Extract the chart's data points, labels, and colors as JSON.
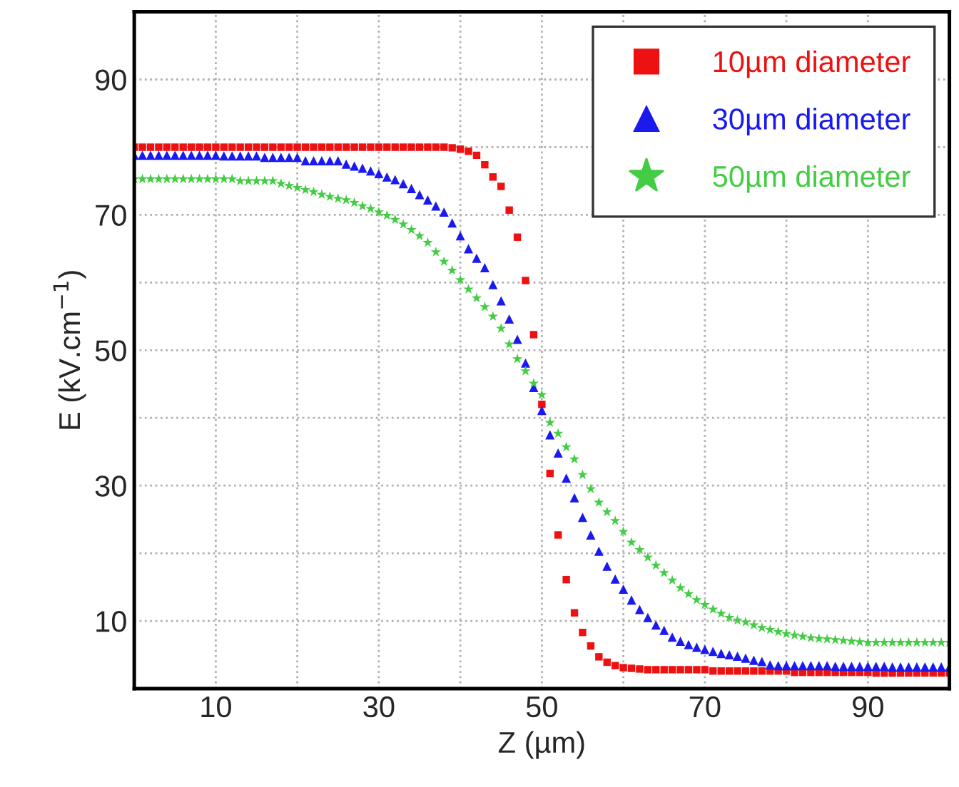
{
  "chart_data": {
    "type": "scatter",
    "xlabel": "Z (µm)",
    "ylabel": "E (kV.cm$^{−1}$)",
    "x": [
      0,
      1,
      2,
      3,
      4,
      5,
      6,
      7,
      8,
      9,
      10,
      11,
      12,
      13,
      14,
      15,
      16,
      17,
      18,
      19,
      20,
      21,
      22,
      23,
      24,
      25,
      26,
      27,
      28,
      29,
      30,
      31,
      32,
      33,
      34,
      35,
      36,
      37,
      38,
      39,
      40,
      41,
      42,
      43,
      44,
      45,
      46,
      47,
      48,
      49,
      50,
      51,
      52,
      53,
      54,
      55,
      56,
      57,
      58,
      59,
      60,
      61,
      62,
      63,
      64,
      65,
      66,
      67,
      68,
      69,
      70,
      71,
      72,
      73,
      74,
      75,
      76,
      77,
      78,
      79,
      80,
      81,
      82,
      83,
      84,
      85,
      86,
      87,
      88,
      89,
      90,
      91,
      92,
      93,
      94,
      95,
      96,
      97,
      98,
      99,
      100
    ],
    "series": [
      {
        "name": "10µm diameter",
        "color": "#ee1111",
        "marker": "square",
        "values": [
          80.0,
          80.0,
          80.0,
          80.0,
          80.0,
          80.0,
          80.0,
          80.0,
          80.0,
          80.0,
          80.0,
          80.0,
          80.0,
          80.0,
          80.0,
          80.0,
          80.0,
          80.0,
          80.0,
          80.0,
          80.0,
          80.0,
          80.0,
          80.0,
          80.0,
          80.0,
          80.0,
          80.0,
          80.0,
          80.0,
          80.0,
          80.0,
          80.0,
          80.0,
          80.0,
          80.0,
          80.0,
          80.0,
          80.0,
          79.9,
          79.7,
          79.4,
          78.8,
          77.4,
          75.6,
          74.2,
          70.7,
          66.7,
          60.3,
          52.3,
          42.0,
          31.8,
          22.7,
          16.1,
          11.2,
          8.3,
          6.3,
          4.7,
          3.9,
          3.4,
          3.1,
          3.0,
          2.9,
          2.8,
          2.8,
          2.8,
          2.8,
          2.8,
          2.8,
          2.8,
          2.8,
          2.6,
          2.6,
          2.6,
          2.6,
          2.6,
          2.6,
          2.6,
          2.6,
          2.6,
          2.6,
          2.4,
          2.4,
          2.4,
          2.4,
          2.4,
          2.4,
          2.4,
          2.4,
          2.4,
          2.4,
          2.3,
          2.3,
          2.3,
          2.3,
          2.3,
          2.3,
          2.3,
          2.3,
          2.3,
          2.3
        ]
      },
      {
        "name": "30µm diameter",
        "color": "#1a1aee",
        "marker": "triangle",
        "values": [
          78.8,
          78.8,
          78.8,
          78.8,
          78.8,
          78.8,
          78.8,
          78.8,
          78.8,
          78.8,
          78.8,
          78.7,
          78.7,
          78.7,
          78.7,
          78.7,
          78.5,
          78.5,
          78.5,
          78.5,
          78.5,
          78.0,
          78.0,
          78.0,
          78.0,
          78.0,
          77.5,
          77.2,
          76.9,
          76.5,
          76.1,
          75.6,
          75.2,
          74.6,
          73.9,
          73.0,
          72.2,
          71.3,
          70.4,
          68.8,
          66.9,
          65.0,
          63.6,
          62.2,
          59.7,
          57.3,
          54.6,
          51.6,
          48.1,
          44.5,
          41.1,
          37.5,
          34.8,
          31.1,
          28.2,
          25.3,
          22.7,
          20.3,
          18.1,
          16.2,
          14.7,
          13.1,
          11.7,
          10.5,
          9.4,
          8.6,
          7.6,
          7.0,
          6.5,
          6.1,
          5.8,
          5.5,
          5.2,
          5.0,
          4.8,
          4.5,
          4.2,
          4.0,
          3.5,
          3.4,
          3.4,
          3.4,
          3.4,
          3.4,
          3.4,
          3.4,
          3.3,
          3.3,
          3.3,
          3.3,
          3.3,
          3.3,
          3.3,
          3.2,
          3.2,
          3.2,
          3.2,
          3.2,
          3.2,
          3.2,
          3.2
        ]
      },
      {
        "name": "50µm diameter",
        "color": "#44cc44",
        "marker": "star",
        "values": [
          75.3,
          75.3,
          75.3,
          75.3,
          75.3,
          75.3,
          75.3,
          75.3,
          75.3,
          75.3,
          75.3,
          75.3,
          75.3,
          75.0,
          75.0,
          75.0,
          75.0,
          75.0,
          74.6,
          74.3,
          74.0,
          73.7,
          73.4,
          73.0,
          72.7,
          72.4,
          72.2,
          71.8,
          71.3,
          70.9,
          70.4,
          69.9,
          69.3,
          68.6,
          67.8,
          66.9,
          65.9,
          64.5,
          63.1,
          61.8,
          60.4,
          59.0,
          57.7,
          56.4,
          55.0,
          53.2,
          50.9,
          48.7,
          46.9,
          45.1,
          43.4,
          39.3,
          37.7,
          35.7,
          33.9,
          31.6,
          29.5,
          27.5,
          26.1,
          24.8,
          23.2,
          21.6,
          20.5,
          19.4,
          18.2,
          17.1,
          16.0,
          14.9,
          14.0,
          13.1,
          12.4,
          11.7,
          11.1,
          10.5,
          10.1,
          9.8,
          9.4,
          9.0,
          8.7,
          8.4,
          8.1,
          7.9,
          7.7,
          7.5,
          7.4,
          7.3,
          7.2,
          7.1,
          7.0,
          6.9,
          6.8,
          6.8,
          6.8,
          6.8,
          6.8,
          6.8,
          6.8,
          6.8,
          6.8,
          6.8,
          6.8
        ]
      }
    ],
    "xlim": [
      0,
      100
    ],
    "ylim": [
      0,
      100
    ],
    "xticks": [
      {
        "value": 0,
        "label": null
      },
      10,
      {
        "value": 20,
        "label": null
      },
      30,
      {
        "value": 40,
        "label": null
      },
      50,
      {
        "value": 60,
        "label": null
      },
      70,
      {
        "value": 80,
        "label": null
      },
      90,
      {
        "value": 100,
        "label": null
      }
    ],
    "yticks": [
      {
        "value": 0,
        "label": null
      },
      10,
      {
        "value": 20,
        "label": null
      },
      30,
      {
        "value": 40,
        "label": null
      },
      50,
      {
        "value": 60,
        "label": null
      },
      70,
      {
        "value": 80,
        "label": null
      },
      90,
      {
        "value": 100,
        "label": null
      }
    ],
    "grid": true,
    "legend": "top right"
  }
}
